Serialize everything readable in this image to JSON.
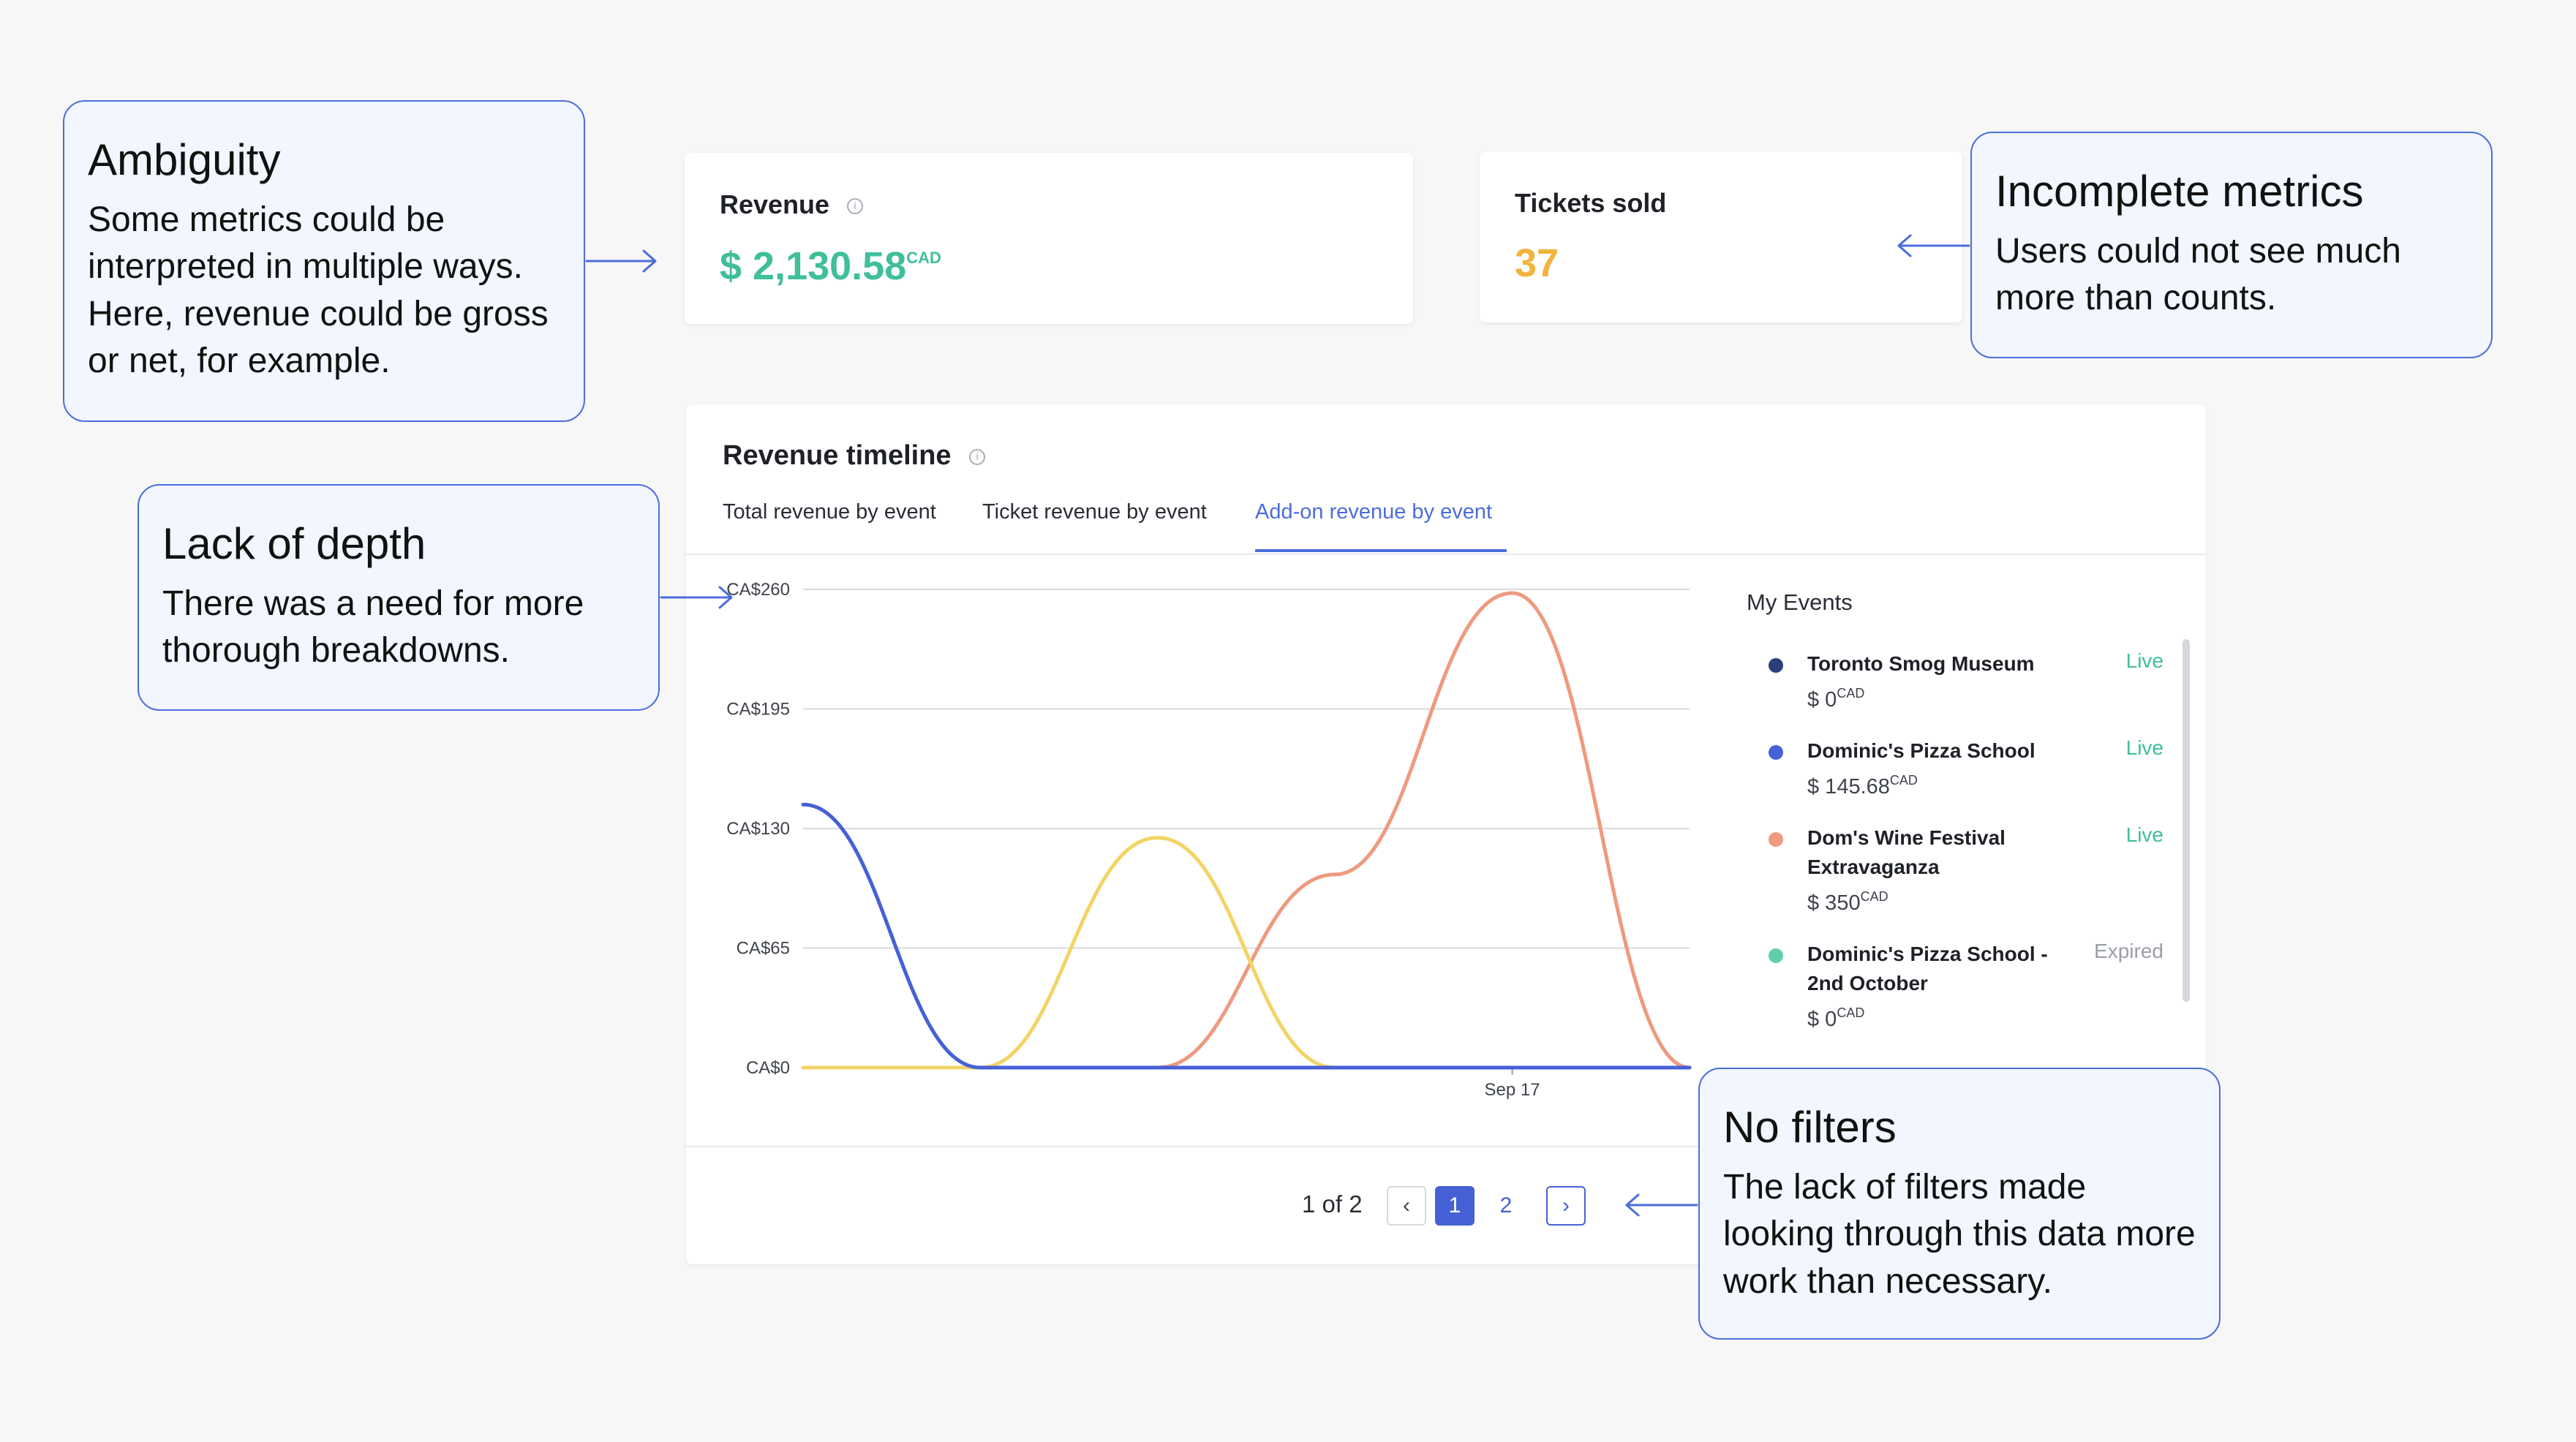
{
  "colors": {
    "accent": "#4b6ddb",
    "revenue_value": "#3fbf9a",
    "tickets_value": "#f2b33d",
    "live_status": "#3fbf9a",
    "expired_status": "#9a9ea8",
    "note_border": "#4b6ddb"
  },
  "callouts": {
    "ambiguity": {
      "title": "Ambiguity",
      "body": "Some metrics could be interpreted in multiple ways. Here, revenue could be gross or net, for example."
    },
    "incomplete": {
      "title": "Incomplete metrics",
      "body": "Users could not see much more than counts."
    },
    "depth": {
      "title": "Lack of depth",
      "body": "There was a need for more thorough breakdowns."
    },
    "filters": {
      "title": "No filters",
      "body": "The lack of filters made looking through this data more work than necessary."
    }
  },
  "revenue_card": {
    "label": "Revenue",
    "info_icon": "i",
    "value": "$ 2,130.58",
    "currency": "CAD"
  },
  "tickets_card": {
    "label": "Tickets sold",
    "value": "37"
  },
  "timeline": {
    "title": "Revenue timeline",
    "info_icon": "i",
    "tabs": [
      "Total revenue by event",
      "Ticket revenue by event",
      "Add-on revenue by event"
    ],
    "active_tab": 2
  },
  "events_panel": {
    "heading": "My Events",
    "events": [
      {
        "name_lines": [
          "Toronto Smog Museum"
        ],
        "status": "Live",
        "amount": "$ 0",
        "currency": "CAD",
        "color": "#2c3e7a"
      },
      {
        "name_lines": [
          "Dominic's Pizza School"
        ],
        "status": "Live",
        "amount": "$ 145.68",
        "currency": "CAD",
        "color": "#4661d6"
      },
      {
        "name_lines": [
          "Dom's Wine Festival",
          "Extravaganza"
        ],
        "status": "Live",
        "amount": "$ 350",
        "currency": "CAD",
        "color": "#ee9a7f"
      },
      {
        "name_lines": [
          "Dominic's Pizza School -",
          "2nd October"
        ],
        "status": "Expired",
        "amount": "$ 0",
        "currency": "CAD",
        "color": "#5fd0a6"
      }
    ]
  },
  "pagination": {
    "summary": "1 of 2",
    "prev_icon": "‹",
    "next_icon": "›",
    "pages": [
      "1",
      "2"
    ],
    "current": "1"
  },
  "chart_data": {
    "type": "line",
    "title": "",
    "xlabel": "",
    "ylabel": "",
    "x_ticks": [
      "Sep 17"
    ],
    "y_ticks": [
      "CA$0",
      "CA$65",
      "CA$130",
      "CA$195",
      "CA$260"
    ],
    "ylim": [
      0,
      260
    ],
    "grid": true,
    "series": [
      {
        "color": "#4661d6",
        "points": [
          [
            0,
            143
          ],
          [
            1,
            0
          ],
          [
            5,
            0
          ]
        ]
      },
      {
        "color": "#f2d466",
        "points": [
          [
            0,
            0
          ],
          [
            1,
            0
          ],
          [
            2,
            125
          ],
          [
            3,
            0
          ],
          [
            5,
            0
          ]
        ]
      },
      {
        "color": "#ee9a7f",
        "points": [
          [
            0,
            0
          ],
          [
            2,
            0
          ],
          [
            3,
            105
          ],
          [
            4,
            258
          ],
          [
            5,
            0
          ]
        ]
      },
      {
        "color": "#5fd0a6",
        "points": [
          [
            1,
            0
          ],
          [
            3,
            0
          ]
        ]
      }
    ]
  }
}
